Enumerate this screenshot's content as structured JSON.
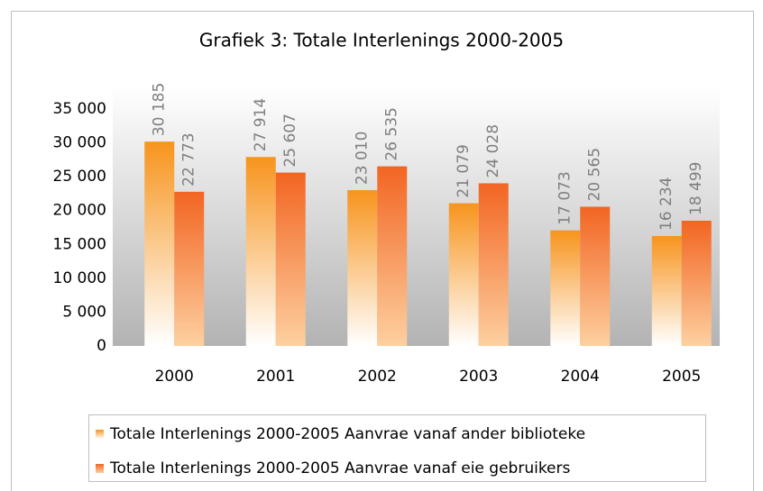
{
  "chart_data": {
    "type": "bar",
    "title": "Grafiek 3: Totale Interlenings 2000-2005",
    "categories": [
      "2000",
      "2001",
      "2002",
      "2003",
      "2004",
      "2005"
    ],
    "series": [
      {
        "name": "Totale Interlenings 2000-2005 Aanvrae vanaf ander biblioteke",
        "color": "#f7941d",
        "values": [
          30185,
          27914,
          23010,
          21079,
          17073,
          16234
        ],
        "value_labels": [
          "30 185",
          "27 914",
          "23 010",
          "21 079",
          "17 073",
          "16 234"
        ]
      },
      {
        "name": "Totale Interlenings 2000-2005 Aanvrae vanaf eie gebruikers",
        "color": "#f26522",
        "values": [
          22773,
          25607,
          26535,
          24028,
          20565,
          18499
        ],
        "value_labels": [
          "22 773",
          "25 607",
          "26 535",
          "24 028",
          "20 565",
          "18 499"
        ]
      }
    ],
    "ylim": [
      0,
      35000
    ],
    "yticks": [
      0,
      {
        "value": 5000,
        "label": "5 000"
      },
      {
        "value": 10000,
        "label": "10 000"
      },
      {
        "value": 15000,
        "label": "15 000"
      },
      {
        "value": 20000,
        "label": "20 000"
      },
      {
        "value": 25000,
        "label": "25 000"
      },
      {
        "value": 30000,
        "label": "30 000"
      },
      {
        "value": 35000,
        "label": "35 000"
      }
    ],
    "grid": false,
    "legend": "bottom"
  }
}
